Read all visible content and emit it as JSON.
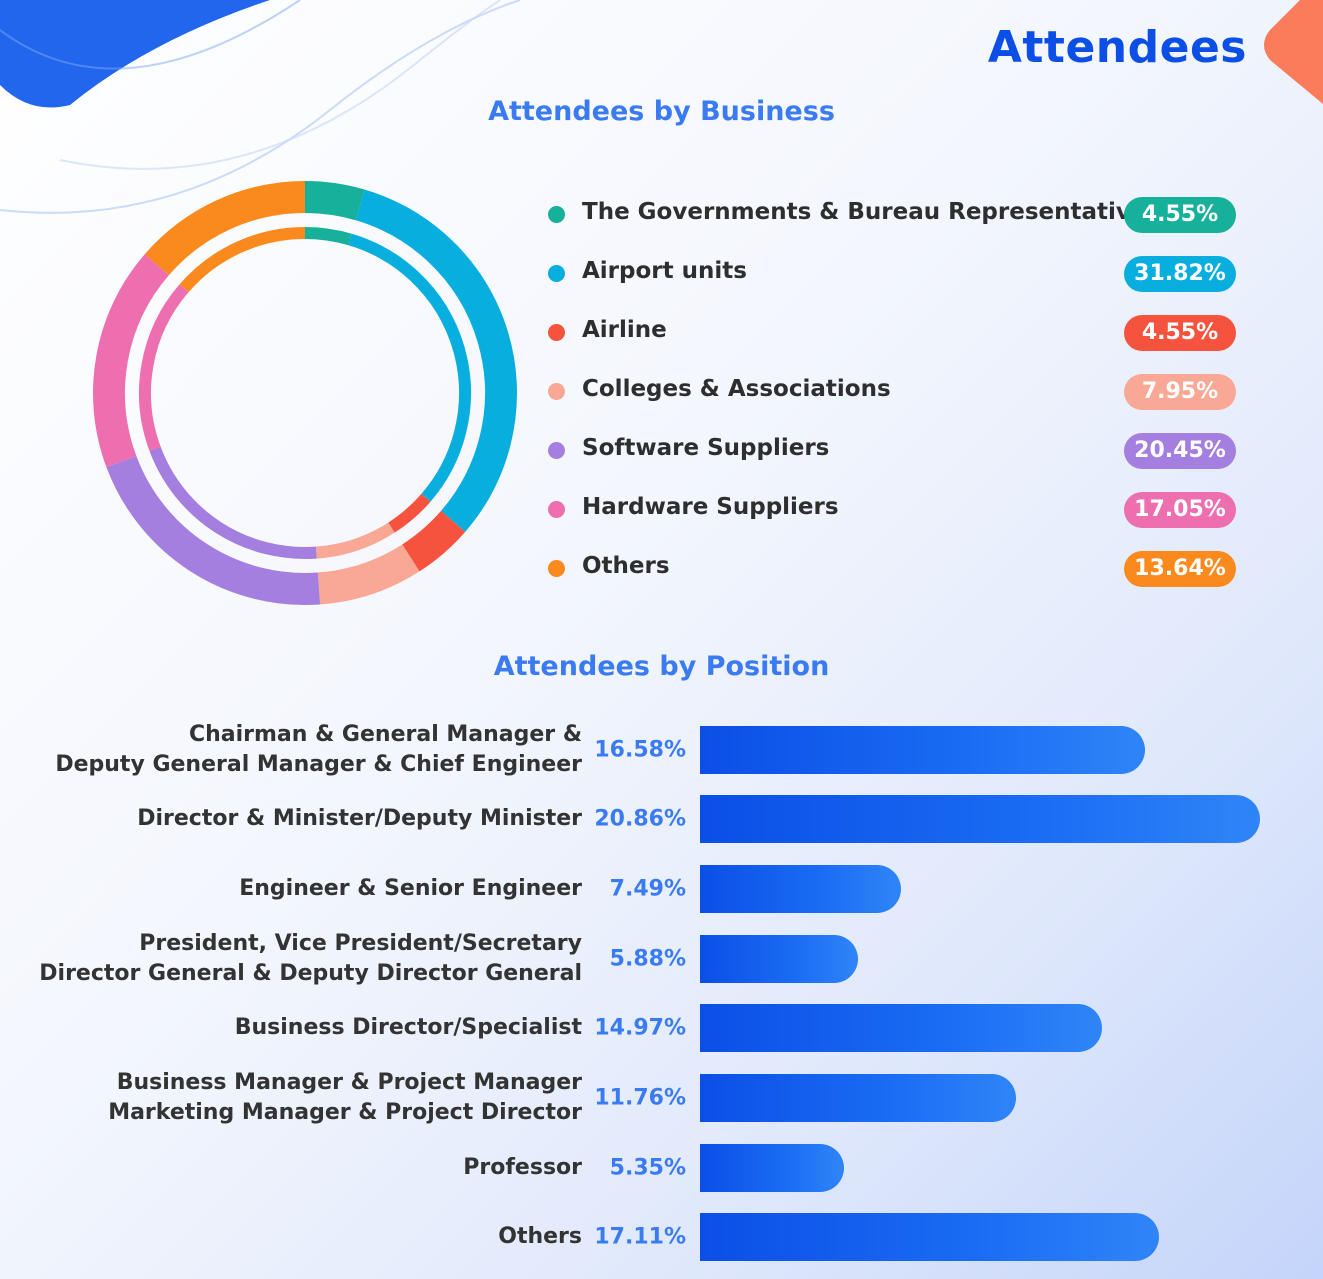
{
  "header": {
    "title": "Attendees"
  },
  "chart_data": [
    {
      "type": "pie",
      "title": "Attendees by Business",
      "categories": [
        "The Governments & Bureau Representative",
        "Airport units",
        "Airline",
        "Colleges & Associations",
        "Software Suppliers",
        "Hardware Suppliers",
        "Others"
      ],
      "values": [
        4.55,
        31.82,
        4.55,
        7.95,
        20.45,
        17.05,
        13.64
      ],
      "value_labels": [
        "4.55%",
        "31.82%",
        "4.55%",
        "7.95%",
        "20.45%",
        "17.05%",
        "13.64%"
      ],
      "colors": [
        "#17b09a",
        "#08aedd",
        "#f5533d",
        "#f9a896",
        "#a47fe0",
        "#ee6fb0",
        "#fb8a1e"
      ],
      "legend_position": "right"
    },
    {
      "type": "bar",
      "orientation": "horizontal",
      "title": "Attendees by Position",
      "categories": [
        "Chairman & General Manager &\nDeputy General Manager & Chief Engineer",
        "Director & Minister/Deputy Minister",
        "Engineer & Senior Engineer",
        "President, Vice President/Secretary\nDirector General & Deputy Director General",
        "Business Director/Specialist",
        "Business Manager & Project Manager\nMarketing Manager & Project Director",
        "Professor",
        "Others"
      ],
      "values": [
        16.58,
        20.86,
        7.49,
        5.88,
        14.97,
        11.76,
        5.35,
        17.11
      ],
      "value_labels": [
        "16.58%",
        "20.86%",
        "7.49%",
        "5.88%",
        "14.97%",
        "11.76%",
        "5.35%",
        "17.11%"
      ],
      "color": "#0b4fe6"
    }
  ]
}
